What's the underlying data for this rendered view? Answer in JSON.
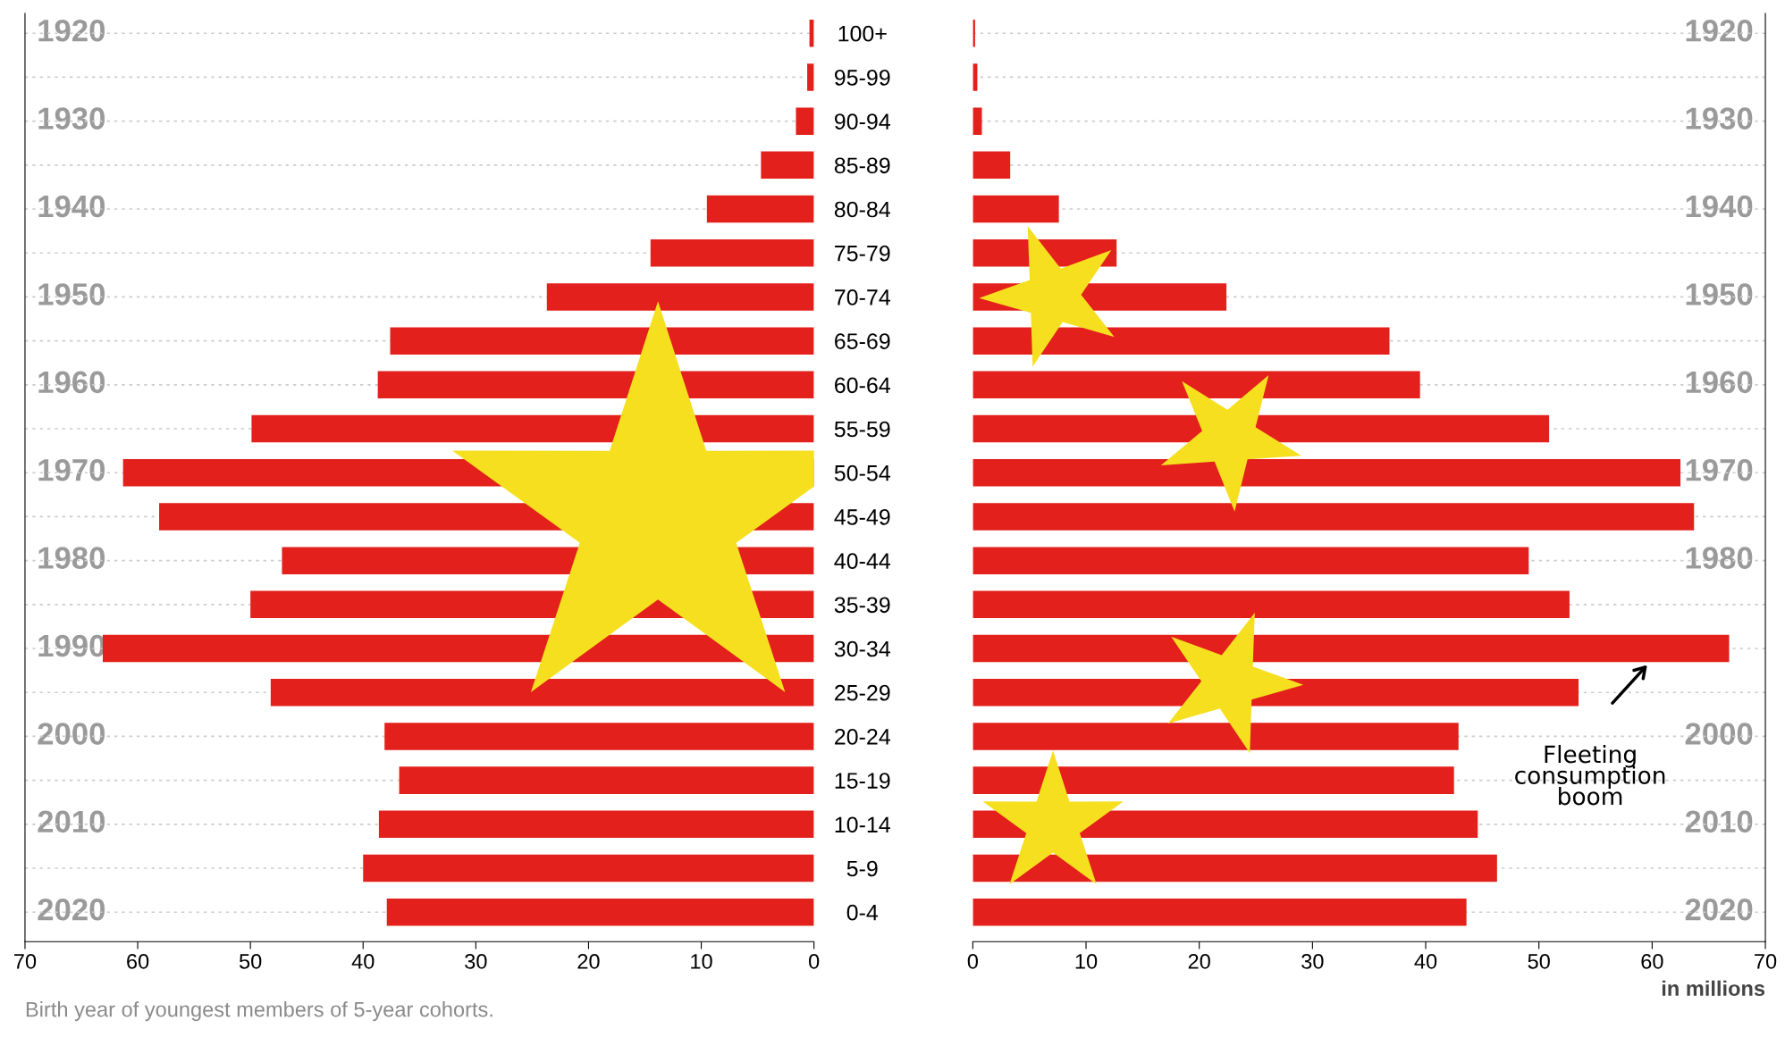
{
  "chart_data": [
    {
      "type": "bar",
      "orientation": "horizontal",
      "categories": [
        null,
        null,
        null,
        null,
        null,
        null,
        null,
        null,
        null,
        null,
        null,
        null,
        null,
        null,
        null,
        null,
        null,
        null,
        null,
        null,
        null
      ],
      "y2_categories": [
        "1920",
        null,
        "1930",
        null,
        "1940",
        null,
        "1950",
        null,
        "1960",
        null,
        "1970",
        null,
        "1980",
        null,
        "1990",
        null,
        "2000",
        null,
        "2010",
        null,
        "2020"
      ],
      "values": [
        0.4,
        0.6,
        1.6,
        4.7,
        9.5,
        14.5,
        23.7,
        37.6,
        38.7,
        49.9,
        61.3,
        58.1,
        47.2,
        50.0,
        63.1,
        48.2,
        38.1,
        36.8,
        38.6,
        40.0,
        37.9
      ],
      "color": "#e3201b",
      "xlim": [
        70,
        0
      ],
      "xticks": [
        70,
        60,
        50,
        40,
        30,
        20,
        10,
        0
      ],
      "grid": "y",
      "tick_labels": "x",
      "annotations": [
        "Birth year of youngest members of 5-year cohorts."
      ]
    },
    {
      "type": "bar",
      "orientation": "horizontal",
      "categories": [
        "100+",
        "95-99",
        "90-94",
        "85-89",
        "80-84",
        "75-79",
        "70-74",
        "65-69",
        "60-64",
        "55-59",
        "50-54",
        "45-49",
        "40-44",
        "35-39",
        "30-34",
        "25-29",
        "20-24",
        "15-19",
        "10-14",
        "5-9",
        "0-4"
      ],
      "y2_categories": [
        "1920",
        null,
        "1930",
        null,
        "1940",
        null,
        "1950",
        null,
        "1960",
        null,
        "1970",
        null,
        "1980",
        null,
        null,
        null,
        "2000",
        null,
        "2010",
        null,
        "2020"
      ],
      "values": [
        0.2,
        0.4,
        0.8,
        3.3,
        7.6,
        12.7,
        22.4,
        36.8,
        39.5,
        50.9,
        62.5,
        63.7,
        49.1,
        52.7,
        66.8,
        53.5,
        42.9,
        42.5,
        44.6,
        46.3,
        43.6
      ],
      "color": "#e3201b",
      "xlim": [
        0,
        70
      ],
      "xticks": [
        0,
        10,
        20,
        30,
        40,
        50,
        60,
        70
      ],
      "grid": "y",
      "xlabel": "in millions",
      "annotations": [
        "Fleeting consumption boom"
      ]
    }
  ]
}
